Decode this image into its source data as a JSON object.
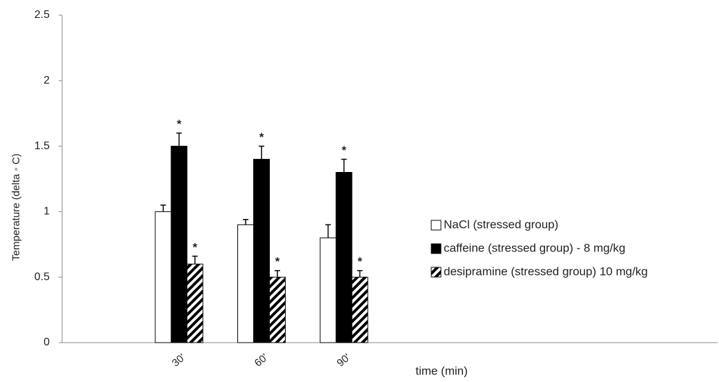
{
  "chart_data": {
    "type": "bar",
    "y_label": "Temperature (delta ◦ C)",
    "x_label": "time (min)",
    "categories": [
      null,
      "30'",
      "60'",
      "90'",
      null,
      null,
      null,
      null
    ],
    "series": [
      {
        "name": "NaCl (stressed group)",
        "color": "#ffffff",
        "values": [
          0,
          1.0,
          0.9,
          0.8,
          null,
          null,
          null,
          null
        ],
        "errors": [
          null,
          0.05,
          0.04,
          0.1,
          null,
          null,
          null,
          null
        ],
        "annotations": [
          null,
          null,
          null,
          null,
          null,
          null,
          null,
          null
        ]
      },
      {
        "name": "caffeine (stressed group) - 8 mg/kg",
        "color": "#000000",
        "values": [
          0,
          1.5,
          1.4,
          1.3,
          null,
          null,
          null,
          null
        ],
        "errors": [
          null,
          0.1,
          0.1,
          0.1,
          null,
          null,
          null,
          null
        ],
        "annotations": [
          null,
          "*",
          "*",
          "*",
          null,
          null,
          null,
          null
        ]
      },
      {
        "name": "desipramine (stressed group) 10 mg/kg",
        "color": "#000000",
        "pattern": "diagonal",
        "values": [
          0,
          0.6,
          0.5,
          0.5,
          null,
          null,
          null,
          null
        ],
        "errors": [
          null,
          0.06,
          0.05,
          0.05,
          null,
          null,
          null,
          null
        ],
        "annotations": [
          null,
          "*",
          "*",
          "*",
          null,
          null,
          null,
          null
        ]
      }
    ],
    "ylim": [
      0,
      2.5
    ],
    "yticks": [
      0,
      0.5,
      1,
      1.5,
      2,
      2.5
    ],
    "grid": false,
    "legend": "right"
  }
}
